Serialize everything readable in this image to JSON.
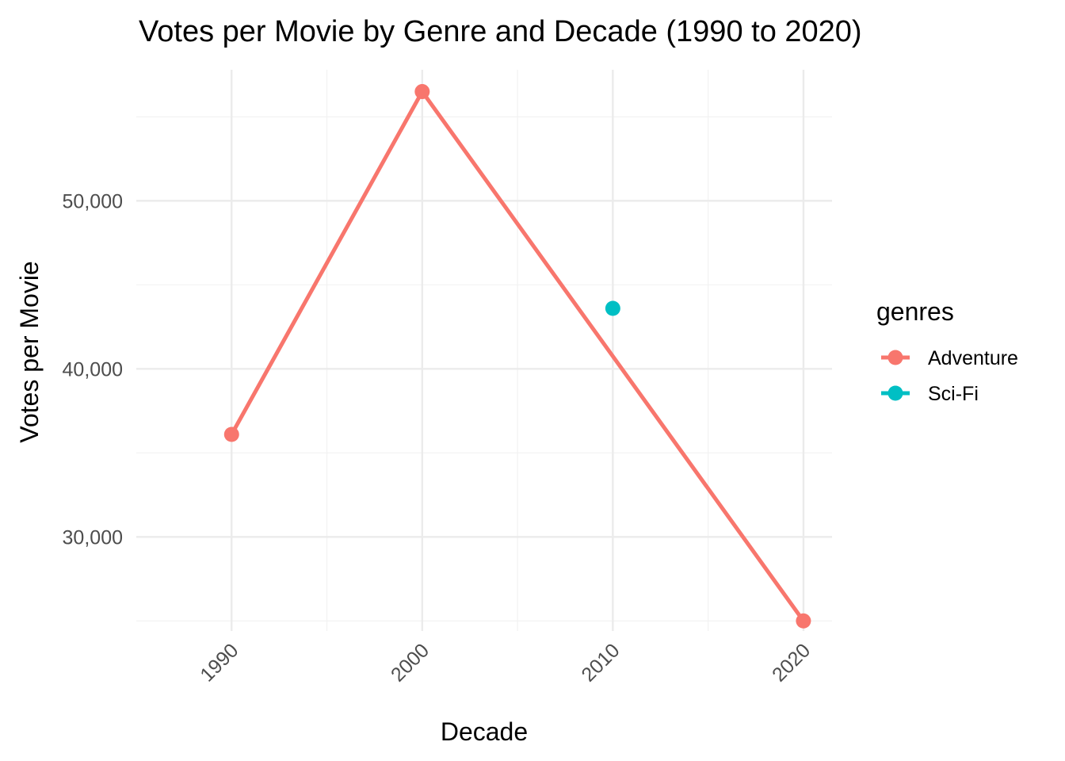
{
  "chart_data": {
    "type": "line",
    "title": "Votes per Movie by Genre and Decade (1990 to 2020)",
    "xlabel": "Decade",
    "ylabel": "Votes per Movie",
    "x_ticks": [
      "1990",
      "2000",
      "2010",
      "2020"
    ],
    "y_ticks": [
      "30,000",
      "40,000",
      "50,000"
    ],
    "y_tick_values": [
      30000,
      40000,
      50000
    ],
    "xlim": [
      1985,
      2021.5
    ],
    "ylim": [
      24400,
      57800
    ],
    "grid": true,
    "legend": {
      "title": "genres",
      "position": "right"
    },
    "series": [
      {
        "name": "Adventure",
        "color": "#F8766D",
        "points": [
          {
            "x": 1990,
            "y": 36100
          },
          {
            "x": 2000,
            "y": 56500
          },
          {
            "x": 2020,
            "y": 25000
          }
        ]
      },
      {
        "name": "Sci-Fi",
        "color": "#00BFC4",
        "points": [
          {
            "x": 2010,
            "y": 43600
          }
        ]
      }
    ]
  }
}
